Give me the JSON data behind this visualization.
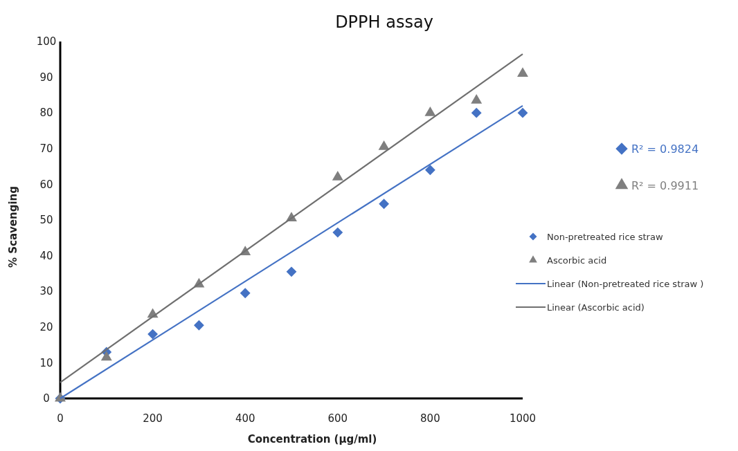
{
  "chart_data": {
    "type": "scatter",
    "title": "DPPH assay",
    "xlabel": "Concentration (μg/ml)",
    "ylabel": "% Scavenging",
    "xlim": [
      0,
      1000
    ],
    "xticks": [
      0,
      200,
      400,
      600,
      800,
      1000
    ],
    "ylim": [
      0,
      100
    ],
    "yticks": [
      0,
      10,
      20,
      30,
      40,
      50,
      60,
      70,
      80,
      90,
      100
    ],
    "legend": "right",
    "annotations": [
      "R² = 0.9824",
      "R² = 0.9911"
    ],
    "series": [
      {
        "name": "Non-pretreated rice straw",
        "marker": "diamond",
        "color": "#4472c4",
        "x": [
          0,
          100,
          200,
          300,
          400,
          500,
          600,
          700,
          800,
          900,
          1000
        ],
        "values": [
          0,
          13,
          18,
          20.5,
          29.5,
          35.5,
          46.5,
          54.5,
          64,
          80,
          80
        ]
      },
      {
        "name": "Ascorbic acid",
        "marker": "triangle",
        "color": "#7f7f7f",
        "x": [
          0,
          100,
          200,
          300,
          400,
          500,
          600,
          700,
          800,
          900,
          1000
        ],
        "values": [
          0,
          11.5,
          23.5,
          32,
          41,
          50.5,
          62,
          70.5,
          80,
          83.5,
          91
        ]
      },
      {
        "name": "Linear (Non-pretreated rice straw )",
        "type": "line",
        "line_style": "solid",
        "color": "#4472c4",
        "x": [
          0,
          1000
        ],
        "values": [
          0,
          82
        ]
      },
      {
        "name": "Linear (Ascorbic acid)",
        "type": "line",
        "line_style": "solid",
        "color": "#6f6f6f",
        "x": [
          0,
          1000
        ],
        "values": [
          4.5,
          96.5
        ]
      }
    ]
  }
}
